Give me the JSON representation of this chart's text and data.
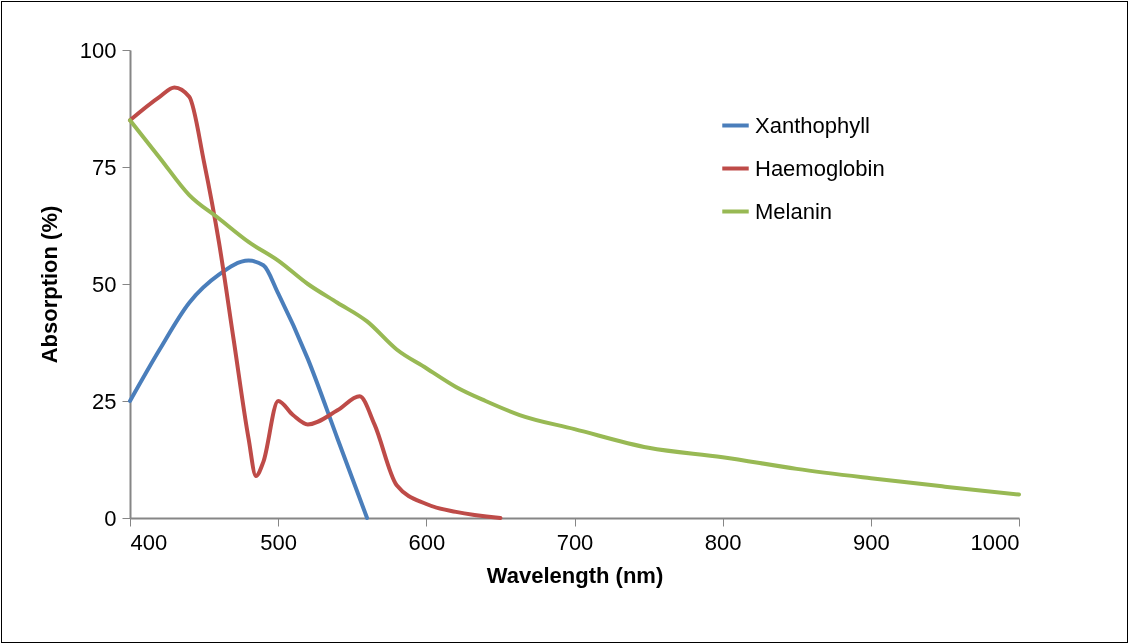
{
  "chart_data": {
    "type": "line",
    "xlabel": "Wavelength (nm)",
    "ylabel": "Absorption (%)",
    "xlim": [
      400,
      1000
    ],
    "xticks": [
      400,
      500,
      600,
      700,
      800,
      900,
      1000
    ],
    "ylim": [
      0,
      100
    ],
    "yticks": [
      0,
      25,
      50,
      75,
      100
    ],
    "grid": false,
    "legend": "top right",
    "line_style": "solid",
    "marker": "none",
    "series": [
      {
        "name": "Xanthophyll",
        "color": "#4a7ebb",
        "x": [
          400,
          420,
          440,
          460,
          480,
          490,
          500,
          520,
          540,
          560
        ],
        "values": [
          25,
          36,
          46,
          52,
          55,
          54,
          48,
          34,
          17,
          0
        ]
      },
      {
        "name": "Haemoglobin",
        "color": "#be4b48",
        "x": [
          400,
          420,
          430,
          440,
          450,
          460,
          470,
          480,
          485,
          490,
          500,
          510,
          520,
          540,
          555,
          565,
          580,
          600,
          620,
          650
        ],
        "values": [
          85,
          90,
          92,
          90,
          76,
          59,
          38,
          17,
          9,
          12,
          25,
          22,
          20,
          23,
          26,
          20,
          7,
          3,
          1.3,
          0
        ]
      },
      {
        "name": "Melanin",
        "color": "#98b954",
        "x": [
          400,
          420,
          440,
          460,
          480,
          500,
          520,
          540,
          560,
          580,
          600,
          620,
          640,
          663,
          700,
          750,
          800,
          850,
          900,
          950,
          1000
        ],
        "values": [
          85,
          77,
          69,
          64,
          59,
          55,
          50,
          46,
          42,
          36,
          32,
          28,
          25,
          22,
          19,
          15,
          13,
          10.5,
          8.5,
          6.7,
          5
        ]
      }
    ]
  }
}
